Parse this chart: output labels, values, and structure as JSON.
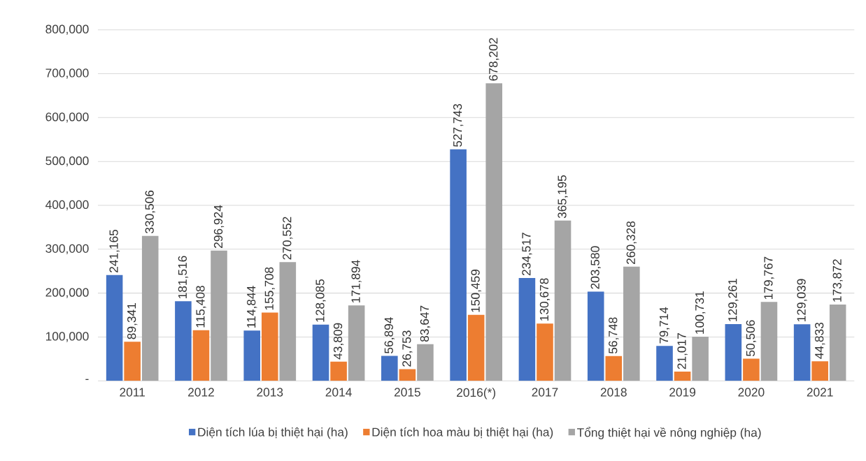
{
  "chart_data": {
    "type": "bar",
    "categories": [
      "2011",
      "2012",
      "2013",
      "2014",
      "2015",
      "2016(*)",
      "2017",
      "2018",
      "2019",
      "2020",
      "2021"
    ],
    "series": [
      {
        "name": "Diện tích lúa bị thiệt hại (ha)",
        "color": "#4472c4",
        "values": [
          241165,
          181516,
          114844,
          128085,
          56894,
          527743,
          234517,
          203580,
          79714,
          129261,
          129039
        ],
        "value_labels": [
          "241,165",
          "181,516",
          "114,844",
          "128,085",
          "56,894",
          "527,743",
          "234,517",
          "203,580",
          "79,714",
          "129,261",
          "129,039"
        ]
      },
      {
        "name": "Diện tích hoa màu bị thiệt hại (ha)",
        "color": "#ed7d31",
        "values": [
          89341,
          115408,
          155708,
          43809,
          26753,
          150459,
          130678,
          56748,
          21017,
          50506,
          44833
        ],
        "value_labels": [
          "89,341",
          "115,408",
          "155,708",
          "43,809",
          "26,753",
          "150,459",
          "130,678",
          "56,748",
          "21,017",
          "50,506",
          "44,833"
        ]
      },
      {
        "name": "Tổng thiệt hại về nông nghiệp (ha)",
        "color": "#a5a5a5",
        "values": [
          330506,
          296924,
          270552,
          171894,
          83647,
          678202,
          365195,
          260328,
          100731,
          179767,
          173872
        ],
        "value_labels": [
          "330,506",
          "296,924",
          "270,552",
          "171,894",
          "83,647",
          "678,202",
          "365,195",
          "260,328",
          "100,731",
          "179,767",
          "173,872"
        ]
      }
    ],
    "ylim": [
      0,
      800000
    ],
    "yticks": [
      {
        "value": 0,
        "label": "-"
      },
      {
        "value": 100000,
        "label": "100,000"
      },
      {
        "value": 200000,
        "label": "200,000"
      },
      {
        "value": 300000,
        "label": "300,000"
      },
      {
        "value": 400000,
        "label": "400,000"
      },
      {
        "value": 500000,
        "label": "500,000"
      },
      {
        "value": 600000,
        "label": "600,000"
      },
      {
        "value": 700000,
        "label": "700,000"
      },
      {
        "value": 800000,
        "label": "800,000"
      }
    ],
    "grid": "y",
    "legend": "bottom"
  }
}
